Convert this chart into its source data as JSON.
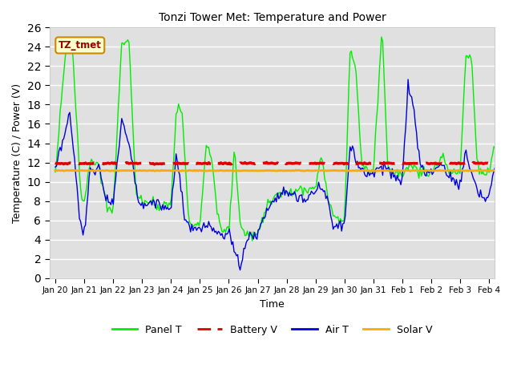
{
  "title": "Tonzi Tower Met: Temperature and Power",
  "xlabel": "Time",
  "ylabel": "Temperature (C) / Power (V)",
  "ylim": [
    0,
    26
  ],
  "yticks": [
    0,
    2,
    4,
    6,
    8,
    10,
    12,
    14,
    16,
    18,
    20,
    22,
    24,
    26
  ],
  "x_tick_labels": [
    "Jan 20",
    "Jan 21",
    "Jan 22",
    "Jan 23",
    "Jan 24",
    "Jan 25",
    "Jan 26",
    "Jan 27",
    "Jan 28",
    "Jan 29",
    "Jan 30",
    "Jan 31",
    "Feb 1",
    "Feb 2",
    "Feb 3",
    "Feb 4"
  ],
  "fig_bg_color": "#ffffff",
  "plot_bg_color": "#e0e0e0",
  "grid_color": "#ffffff",
  "panel_T_color": "#00ee00",
  "battery_V_color": "#dd0000",
  "air_T_color": "#0000dd",
  "solar_V_color": "#ffaa00",
  "battery_V_value": 11.9,
  "solar_V_value": 11.15,
  "annotation_text": "TZ_tmet",
  "annotation_bg": "#ffffcc",
  "annotation_border": "#cc8800",
  "annotation_text_color": "#990000"
}
